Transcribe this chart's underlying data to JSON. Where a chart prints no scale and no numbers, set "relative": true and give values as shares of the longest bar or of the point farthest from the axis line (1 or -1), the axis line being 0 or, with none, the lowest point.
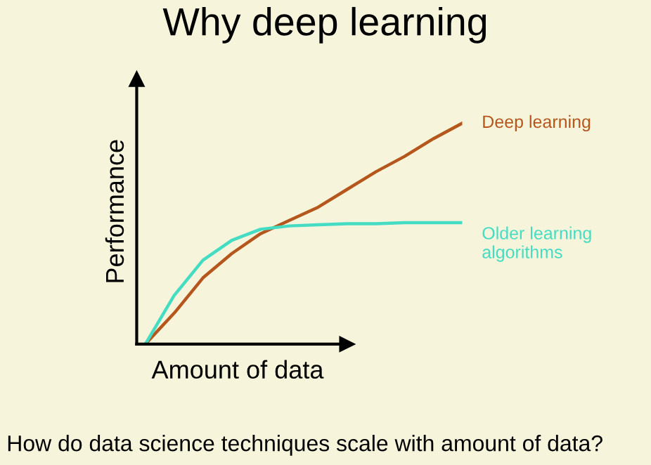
{
  "chart_data": {
    "type": "line",
    "title": "Why deep learning",
    "xlabel": "Amount of data",
    "ylabel": "Performance",
    "annotations": [
      "How do data science techniques scale with amount of data?"
    ],
    "relative": true,
    "categories": [
      null,
      null,
      null,
      null,
      null,
      null,
      null,
      null,
      null,
      null,
      null,
      null
    ],
    "series": [
      {
        "name": "Deep learning",
        "color": "#b5561c",
        "values": [
          0,
          0.14,
          0.3,
          0.41,
          0.5,
          0.56,
          0.62,
          0.7,
          0.78,
          0.85,
          0.93,
          1.0
        ]
      },
      {
        "name": "Older learning algorithms",
        "color": "#45dcc4",
        "values": [
          0,
          0.22,
          0.38,
          0.47,
          0.52,
          0.535,
          0.54,
          0.545,
          0.545,
          0.55,
          0.55,
          0.55
        ]
      }
    ],
    "legend": false,
    "grid": false,
    "marker": "none",
    "line_style": "solid"
  }
}
